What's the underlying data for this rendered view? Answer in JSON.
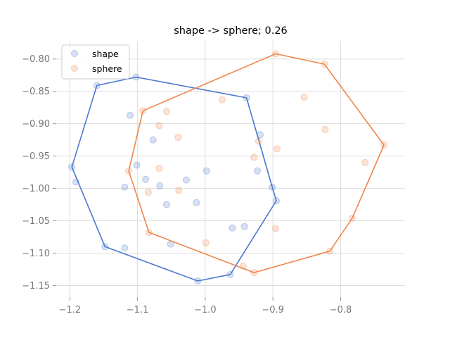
{
  "chart_data": {
    "type": "scatter",
    "title": "shape -> sphere; 0.26",
    "xlabel": "",
    "ylabel": "",
    "xlim": [
      -1.22,
      -0.705
    ],
    "ylim": [
      -1.168,
      -0.772
    ],
    "x_ticks": [
      -1.2,
      -1.1,
      -1.0,
      -0.9,
      -0.8
    ],
    "x_tick_labels": [
      "−1.2",
      "−1.1",
      "−1.0",
      "−0.9",
      "−0.8"
    ],
    "y_ticks": [
      -0.8,
      -0.85,
      -0.9,
      -0.95,
      -1.0,
      -1.05,
      -1.1,
      -1.15
    ],
    "y_tick_labels": [
      "−0.80",
      "−0.85",
      "−0.90",
      "−0.95",
      "−1.00",
      "−1.05",
      "−1.10",
      "−1.15"
    ],
    "grid": true,
    "legend_position": "top-left",
    "series": [
      {
        "name": "shape",
        "color": "#4878cf",
        "points": [
          [
            -1.16,
            -0.841
          ],
          [
            -1.102,
            -0.828
          ],
          [
            -1.111,
            -0.887
          ],
          [
            -1.077,
            -0.925
          ],
          [
            -1.197,
            -0.967
          ],
          [
            -1.191,
            -0.99
          ],
          [
            -1.101,
            -0.964
          ],
          [
            -1.119,
            -0.998
          ],
          [
            -1.088,
            -0.986
          ],
          [
            -1.067,
            -0.996
          ],
          [
            -1.057,
            -1.025
          ],
          [
            -1.028,
            -0.987
          ],
          [
            -1.013,
            -1.022
          ],
          [
            -0.998,
            -0.973
          ],
          [
            -1.051,
            -1.086
          ],
          [
            -1.119,
            -1.092
          ],
          [
            -1.148,
            -1.09
          ],
          [
            -1.011,
            -1.143
          ],
          [
            -0.963,
            -1.133
          ],
          [
            -0.96,
            -1.061
          ],
          [
            -0.942,
            -1.059
          ],
          [
            -0.939,
            -0.86
          ],
          [
            -0.919,
            -0.917
          ],
          [
            -0.923,
            -0.973
          ],
          [
            -0.901,
            -0.998
          ],
          [
            -0.895,
            -1.019
          ]
        ],
        "hull": [
          [
            -1.197,
            -0.967
          ],
          [
            -1.16,
            -0.841
          ],
          [
            -1.102,
            -0.828
          ],
          [
            -0.939,
            -0.86
          ],
          [
            -0.901,
            -0.998
          ],
          [
            -0.895,
            -1.019
          ],
          [
            -0.963,
            -1.133
          ],
          [
            -1.011,
            -1.143
          ],
          [
            -1.148,
            -1.09
          ]
        ]
      },
      {
        "name": "sphere",
        "color": "#ee854a",
        "points": [
          [
            -1.092,
            -0.88
          ],
          [
            -1.057,
            -0.881
          ],
          [
            -1.068,
            -0.903
          ],
          [
            -1.04,
            -0.921
          ],
          [
            -1.068,
            -0.969
          ],
          [
            -1.113,
            -0.973
          ],
          [
            -1.084,
            -1.006
          ],
          [
            -1.039,
            -1.003
          ],
          [
            -1.083,
            -1.068
          ],
          [
            -0.999,
            -1.084
          ],
          [
            -0.975,
            -0.863
          ],
          [
            -0.928,
            -0.952
          ],
          [
            -0.921,
            -0.927
          ],
          [
            -0.894,
            -0.939
          ],
          [
            -0.896,
            -0.792
          ],
          [
            -0.824,
            -0.808
          ],
          [
            -0.854,
            -0.859
          ],
          [
            -0.823,
            -0.909
          ],
          [
            -0.736,
            -0.933
          ],
          [
            -0.764,
            -0.96
          ],
          [
            -0.783,
            -1.046
          ],
          [
            -0.816,
            -1.097
          ],
          [
            -0.896,
            -1.062
          ],
          [
            -0.928,
            -1.13
          ],
          [
            -0.944,
            -1.12
          ]
        ],
        "hull": [
          [
            -1.092,
            -0.88
          ],
          [
            -0.896,
            -0.792
          ],
          [
            -0.824,
            -0.808
          ],
          [
            -0.736,
            -0.933
          ],
          [
            -0.783,
            -1.046
          ],
          [
            -0.816,
            -1.097
          ],
          [
            -0.928,
            -1.13
          ],
          [
            -1.083,
            -1.068
          ],
          [
            -1.113,
            -0.973
          ]
        ]
      }
    ]
  }
}
